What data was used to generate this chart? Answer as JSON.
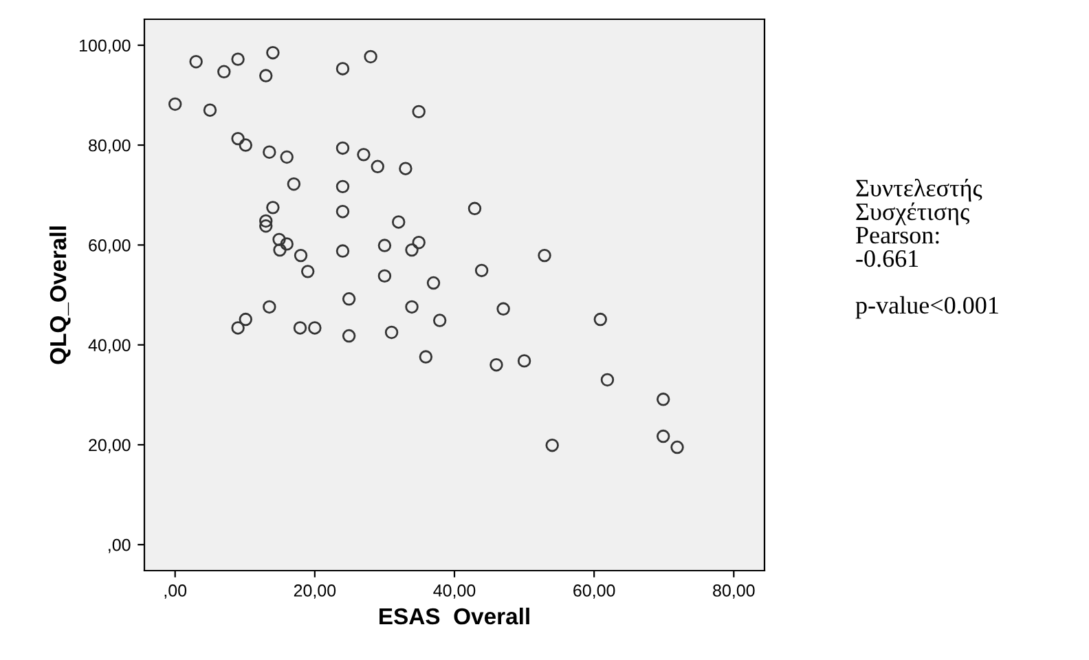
{
  "chart_data": {
    "type": "scatter",
    "xlabel": "ESAS  Overall",
    "ylabel": "QLQ_Overall",
    "x": [
      3.0,
      7.0,
      9.0,
      14.0,
      13.0,
      24.0,
      28.0,
      0.0,
      5.0,
      34.9,
      9.0,
      10.1,
      13.5,
      16.0,
      24.0,
      27.0,
      29.0,
      33.0,
      17.0,
      24.0,
      14.0,
      24.0,
      42.9,
      32.0,
      13.0,
      13.0,
      14.9,
      16.0,
      15.0,
      18.0,
      19.0,
      24.0,
      30.0,
      34.9,
      33.9,
      30.0,
      37.0,
      52.9,
      43.9,
      24.9,
      13.5,
      33.9,
      9.0,
      10.1,
      17.9,
      20.0,
      24.9,
      31.0,
      37.9,
      35.9,
      47.0,
      60.9,
      46.0,
      50.0,
      61.9,
      69.9,
      54.0,
      69.9,
      71.9
    ],
    "values": [
      96.7,
      94.7,
      97.2,
      98.5,
      93.9,
      95.3,
      97.7,
      88.2,
      87.0,
      86.7,
      81.3,
      80.0,
      78.6,
      77.6,
      79.4,
      78.1,
      75.7,
      75.3,
      72.2,
      71.7,
      67.5,
      66.7,
      67.3,
      64.6,
      64.8,
      63.8,
      61.1,
      60.2,
      59.0,
      57.9,
      54.7,
      58.8,
      59.9,
      60.5,
      59.0,
      53.8,
      52.4,
      57.9,
      54.9,
      49.2,
      47.6,
      47.6,
      43.4,
      45.1,
      43.4,
      43.4,
      41.8,
      42.5,
      44.9,
      37.6,
      47.2,
      45.1,
      36.0,
      36.8,
      33.0,
      29.1,
      19.9,
      21.7,
      19.5
    ],
    "marker": "circle",
    "color": "#333333",
    "xlim": [
      -4.4,
      84.4
    ],
    "ylim": [
      -5.2,
      105.2
    ],
    "xticks": [
      {
        "value": 0,
        "label": ",00"
      },
      {
        "value": 20,
        "label": "20,00"
      },
      {
        "value": 40,
        "label": "40,00"
      },
      {
        "value": 60,
        "label": "60,00"
      },
      {
        "value": 80,
        "label": "80,00"
      }
    ],
    "yticks": [
      {
        "value": 0,
        "label": ",00"
      },
      {
        "value": 20,
        "label": "20,00"
      },
      {
        "value": 40,
        "label": "40,00"
      },
      {
        "value": 60,
        "label": "60,00"
      },
      {
        "value": 80,
        "label": "80,00"
      },
      {
        "value": 100,
        "label": "100,00"
      }
    ],
    "grid": false,
    "annotations": [
      "Συντελεστής\nΣυσχέτισης\nPearson:\n-0.661\n\np-value<0.001"
    ]
  }
}
